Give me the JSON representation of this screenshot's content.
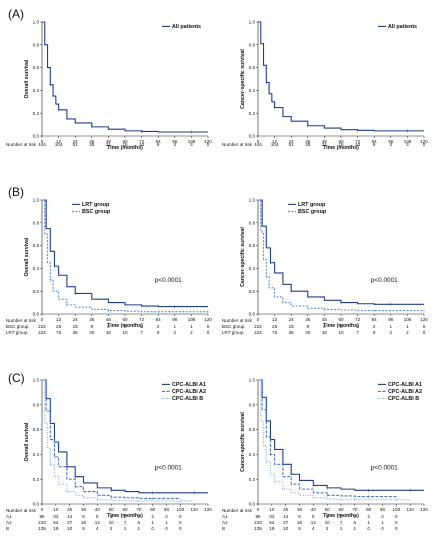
{
  "chart_data": [
    {
      "panel": "(A)",
      "type": "line",
      "ylabel": "Overall survival",
      "xlabel": "Time (months)",
      "xlim": [
        0,
        120
      ],
      "ylim": [
        0,
        1.0
      ],
      "xticks": [
        0,
        12,
        24,
        36,
        48,
        60,
        72,
        84,
        96,
        108,
        120
      ],
      "yticks": [
        "0.0",
        "0.2",
        "0.4",
        "0.6",
        "0.8",
        "1.0"
      ],
      "legend": "top-right",
      "annotation": "",
      "series": [
        {
          "name": "All patients",
          "color": "#1f3f8a",
          "dash": "",
          "x": [
            0,
            2,
            4,
            6,
            8,
            10,
            12,
            18,
            24,
            36,
            48,
            60,
            72,
            84,
            96,
            108,
            120
          ],
          "y": [
            1.0,
            0.8,
            0.6,
            0.45,
            0.35,
            0.28,
            0.23,
            0.15,
            0.115,
            0.08,
            0.06,
            0.045,
            0.04,
            0.035,
            0.035,
            0.035,
            0.035
          ]
        }
      ],
      "risk_title": "Number at risk",
      "risk_rows": [
        {
          "label": "",
          "values": [
            "444",
            "104",
            "51",
            "28",
            "21",
            "15",
            "10",
            "8",
            "3",
            "3",
            "0"
          ]
        }
      ]
    },
    {
      "panel": "",
      "type": "line",
      "ylabel": "Cancer-specific survival",
      "xlabel": "Time (months)",
      "xlim": [
        0,
        120
      ],
      "ylim": [
        0,
        1.0
      ],
      "xticks": [
        0,
        12,
        24,
        36,
        48,
        60,
        72,
        84,
        96,
        108,
        120
      ],
      "yticks": [
        "0.0",
        "0.2",
        "0.4",
        "0.6",
        "0.8",
        "1.0"
      ],
      "legend": "top-right",
      "annotation": "",
      "series": [
        {
          "name": "All patients",
          "color": "#1f3f8a",
          "dash": "",
          "x": [
            0,
            2,
            4,
            6,
            8,
            10,
            12,
            18,
            24,
            36,
            48,
            60,
            72,
            84,
            96,
            108,
            120
          ],
          "y": [
            1.0,
            0.81,
            0.62,
            0.47,
            0.37,
            0.3,
            0.25,
            0.17,
            0.13,
            0.09,
            0.07,
            0.055,
            0.05,
            0.045,
            0.045,
            0.045,
            0.045
          ]
        }
      ],
      "risk_title": "Number at risk",
      "risk_rows": [
        {
          "label": "",
          "values": [
            "444",
            "104",
            "51",
            "28",
            "21",
            "15",
            "10",
            "8",
            "3",
            "3",
            "0"
          ]
        }
      ]
    },
    {
      "panel": "(B)",
      "type": "line",
      "ylabel": "Overall survival",
      "xlabel": "Time (months)",
      "xlim": [
        0,
        120
      ],
      "ylim": [
        0,
        1.0
      ],
      "xticks": [
        0,
        12,
        24,
        36,
        48,
        60,
        72,
        84,
        96,
        108,
        120
      ],
      "yticks": [
        "0.0",
        "0.2",
        "0.4",
        "0.6",
        "0.8",
        "1.0"
      ],
      "legend": "top-left",
      "annotation": "p<0.0001",
      "series": [
        {
          "name": "LRT group",
          "color": "#1f3f8a",
          "dash": "",
          "x": [
            0,
            3,
            6,
            9,
            12,
            18,
            24,
            36,
            48,
            60,
            72,
            84,
            96,
            108,
            120
          ],
          "y": [
            1.0,
            0.75,
            0.55,
            0.42,
            0.34,
            0.24,
            0.18,
            0.13,
            0.1,
            0.08,
            0.07,
            0.065,
            0.065,
            0.065,
            0.065
          ]
        },
        {
          "name": "BSC group",
          "color": "#5b8fd6",
          "dash": "2,1.5",
          "x": [
            0,
            2,
            4,
            6,
            8,
            12,
            18,
            24,
            36,
            48,
            60,
            72,
            84,
            96,
            108,
            120
          ],
          "y": [
            1.0,
            0.7,
            0.45,
            0.3,
            0.2,
            0.13,
            0.08,
            0.06,
            0.04,
            0.03,
            0.025,
            0.02,
            0.02,
            0.02,
            0.02,
            0.02
          ]
        }
      ],
      "risk_title": "Number at risk",
      "risk_rows": [
        {
          "label": "BSC group",
          "values": [
            "222",
            "28",
            "15",
            "8",
            "6",
            "5",
            "3",
            "2",
            "1",
            "1",
            "0"
          ]
        },
        {
          "label": "LRT group",
          "values": [
            "222",
            "76",
            "36",
            "20",
            "15",
            "10",
            "7",
            "6",
            "2",
            "2",
            "0"
          ]
        }
      ]
    },
    {
      "panel": "",
      "type": "line",
      "ylabel": "Cancer-specific survival",
      "xlabel": "Time (months)",
      "xlim": [
        0,
        120
      ],
      "ylim": [
        0,
        1.0
      ],
      "xticks": [
        0,
        12,
        24,
        36,
        48,
        60,
        72,
        84,
        96,
        108,
        120
      ],
      "yticks": [
        "0.0",
        "0.2",
        "0.4",
        "0.6",
        "0.8",
        "1.0"
      ],
      "legend": "top-left",
      "annotation": "p<0.0001",
      "series": [
        {
          "name": "LRT group",
          "color": "#1f3f8a",
          "dash": "",
          "x": [
            0,
            3,
            6,
            9,
            12,
            18,
            24,
            36,
            48,
            60,
            72,
            84,
            96,
            108,
            120
          ],
          "y": [
            1.0,
            0.77,
            0.58,
            0.45,
            0.36,
            0.26,
            0.2,
            0.15,
            0.12,
            0.1,
            0.09,
            0.085,
            0.085,
            0.085,
            0.085
          ]
        },
        {
          "name": "BSC group",
          "color": "#5b8fd6",
          "dash": "2,1.5",
          "x": [
            0,
            2,
            4,
            6,
            8,
            12,
            18,
            24,
            36,
            48,
            60,
            72,
            84,
            96,
            108,
            120
          ],
          "y": [
            1.0,
            0.72,
            0.48,
            0.33,
            0.23,
            0.15,
            0.1,
            0.07,
            0.05,
            0.04,
            0.035,
            0.03,
            0.03,
            0.03,
            0.03,
            0.03
          ]
        }
      ],
      "risk_title": "Number at risk",
      "risk_rows": [
        {
          "label": "BSC group",
          "values": [
            "222",
            "28",
            "15",
            "8",
            "6",
            "5",
            "3",
            "2",
            "1",
            "1",
            "0"
          ]
        },
        {
          "label": "LRT group",
          "values": [
            "222",
            "76",
            "36",
            "20",
            "15",
            "10",
            "7",
            "6",
            "2",
            "2",
            "0"
          ]
        }
      ]
    },
    {
      "panel": "(C)",
      "type": "line",
      "ylabel": "Overall survival",
      "xlabel": "Time (months)",
      "xlim": [
        0,
        120
      ],
      "ylim": [
        0,
        1.0
      ],
      "xticks": [
        0,
        10,
        20,
        30,
        40,
        50,
        60,
        70,
        80,
        90,
        100,
        110,
        120
      ],
      "yticks": [
        "0.0",
        "0.2",
        "0.4",
        "0.6",
        "0.8",
        "1.0"
      ],
      "legend": "top-right",
      "annotation": "p<0.0001",
      "series": [
        {
          "name": "CPC-ALBI A1",
          "color": "#1f3f8a",
          "dash": "",
          "x": [
            0,
            3,
            6,
            9,
            12,
            18,
            24,
            30,
            40,
            50,
            60,
            70,
            80,
            90,
            100,
            110,
            120
          ],
          "y": [
            1.0,
            0.85,
            0.65,
            0.5,
            0.42,
            0.3,
            0.22,
            0.17,
            0.13,
            0.11,
            0.1,
            0.09,
            0.09,
            0.09,
            0.09,
            0.09,
            0.09
          ]
        },
        {
          "name": "CPC-ALBI A2",
          "color": "#4a78c8",
          "dash": "3,1.5",
          "x": [
            0,
            3,
            6,
            9,
            12,
            18,
            24,
            30,
            40,
            50,
            60,
            70,
            80,
            90,
            100
          ],
          "y": [
            1.0,
            0.75,
            0.52,
            0.38,
            0.3,
            0.2,
            0.14,
            0.1,
            0.07,
            0.055,
            0.05,
            0.045,
            0.045,
            0.045,
            0.045
          ]
        },
        {
          "name": "CPC-ALBI B",
          "color": "#7fa8e0",
          "dash": "1,1.5",
          "x": [
            0,
            2,
            4,
            6,
            9,
            12,
            18,
            24,
            30,
            40,
            50,
            60,
            70,
            80,
            90,
            100,
            110
          ],
          "y": [
            1.0,
            0.65,
            0.45,
            0.32,
            0.22,
            0.16,
            0.1,
            0.07,
            0.05,
            0.035,
            0.03,
            0.025,
            0.025,
            0.025,
            0.025,
            0.025,
            0.025
          ]
        }
      ],
      "risk_title": "Number at risk",
      "risk_rows": [
        {
          "label": "A1",
          "values": [
            "86",
            "33",
            "14",
            "6",
            "5",
            "3",
            "2",
            "2",
            "2",
            "2",
            "0"
          ]
        },
        {
          "label": "A2",
          "values": [
            "223",
            "52",
            "27",
            "16",
            "12",
            "10",
            "7",
            "5",
            "1",
            "1",
            "0"
          ]
        },
        {
          "label": "B",
          "values": [
            "135",
            "19",
            "10",
            "6",
            "4",
            "2",
            "1",
            "1",
            "0",
            "0",
            "0"
          ]
        }
      ]
    },
    {
      "panel": "",
      "type": "line",
      "ylabel": "Cancer-specific survival",
      "xlabel": "Time (months)",
      "xlim": [
        0,
        120
      ],
      "ylim": [
        0,
        1.0
      ],
      "xticks": [
        0,
        10,
        20,
        30,
        40,
        50,
        60,
        70,
        80,
        90,
        100,
        110,
        120
      ],
      "yticks": [
        "0.0",
        "0.2",
        "0.4",
        "0.6",
        "0.8",
        "1.0"
      ],
      "legend": "top-right",
      "annotation": "p<0.0001",
      "series": [
        {
          "name": "CPC-ALBI A1",
          "color": "#1f3f8a",
          "dash": "",
          "x": [
            0,
            3,
            6,
            9,
            12,
            18,
            24,
            30,
            40,
            50,
            60,
            70,
            80,
            90,
            100,
            110,
            120
          ],
          "y": [
            1.0,
            0.86,
            0.67,
            0.52,
            0.44,
            0.32,
            0.24,
            0.19,
            0.15,
            0.13,
            0.12,
            0.11,
            0.11,
            0.11,
            0.11,
            0.11,
            0.11
          ]
        },
        {
          "name": "CPC-ALBI A2",
          "color": "#4a78c8",
          "dash": "3,1.5",
          "x": [
            0,
            3,
            6,
            9,
            12,
            18,
            24,
            30,
            40,
            50,
            60,
            70,
            80,
            90,
            100
          ],
          "y": [
            1.0,
            0.76,
            0.54,
            0.4,
            0.32,
            0.22,
            0.16,
            0.12,
            0.09,
            0.07,
            0.065,
            0.06,
            0.06,
            0.06,
            0.06
          ]
        },
        {
          "name": "CPC-ALBI B",
          "color": "#7fa8e0",
          "dash": "1,1.5",
          "x": [
            0,
            2,
            4,
            6,
            9,
            12,
            18,
            24,
            30,
            40,
            50,
            60,
            70,
            80,
            90,
            100,
            110
          ],
          "y": [
            1.0,
            0.67,
            0.47,
            0.34,
            0.24,
            0.18,
            0.12,
            0.09,
            0.07,
            0.05,
            0.04,
            0.035,
            0.035,
            0.035,
            0.035,
            0.035,
            0.035
          ]
        }
      ],
      "risk_title": "Number at risk",
      "risk_rows": [
        {
          "label": "A1",
          "values": [
            "86",
            "33",
            "14",
            "6",
            "5",
            "3",
            "2",
            "2",
            "2",
            "2",
            "0"
          ]
        },
        {
          "label": "A2",
          "values": [
            "223",
            "52",
            "27",
            "16",
            "12",
            "10",
            "7",
            "5",
            "1",
            "1",
            "0"
          ]
        },
        {
          "label": "B",
          "values": [
            "135",
            "19",
            "10",
            "6",
            "4",
            "2",
            "1",
            "1",
            "0",
            "0",
            "0"
          ]
        }
      ]
    }
  ]
}
